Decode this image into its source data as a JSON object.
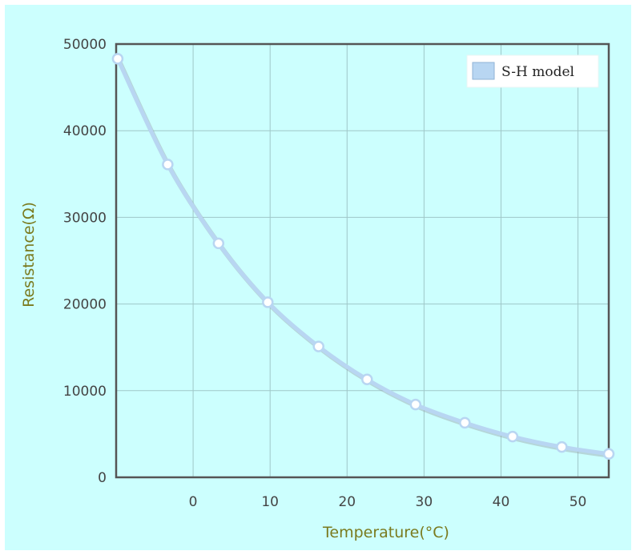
{
  "colors": {
    "panel_background": "#ccfffe",
    "grid": "#9fc7c8",
    "frame": "#555555",
    "series_line": "#b8d6f2",
    "series_shadow": "#9aa4ae",
    "axis_title": "#7a7a1e",
    "legend_swatch": "#b8d6f2"
  },
  "chart_data": {
    "type": "line",
    "xlabel": "Temperature(°C)",
    "ylabel": "Resistance(Ω)",
    "xlim": [
      -10,
      54
    ],
    "ylim": [
      0,
      50000
    ],
    "x_ticks": [
      0,
      10,
      20,
      30,
      40,
      50
    ],
    "y_ticks": [
      0,
      10000,
      20000,
      30000,
      40000,
      50000
    ],
    "grid": true,
    "legend_position": "top-right",
    "series": [
      {
        "name": "S-H model",
        "x": [
          -9.8,
          -3.3,
          3.3,
          9.7,
          16.3,
          22.6,
          28.9,
          35.3,
          41.5,
          47.9,
          54
        ],
        "y": [
          48300,
          36100,
          27000,
          20200,
          15100,
          11300,
          8400,
          6300,
          4700,
          3500,
          2700
        ]
      }
    ]
  }
}
